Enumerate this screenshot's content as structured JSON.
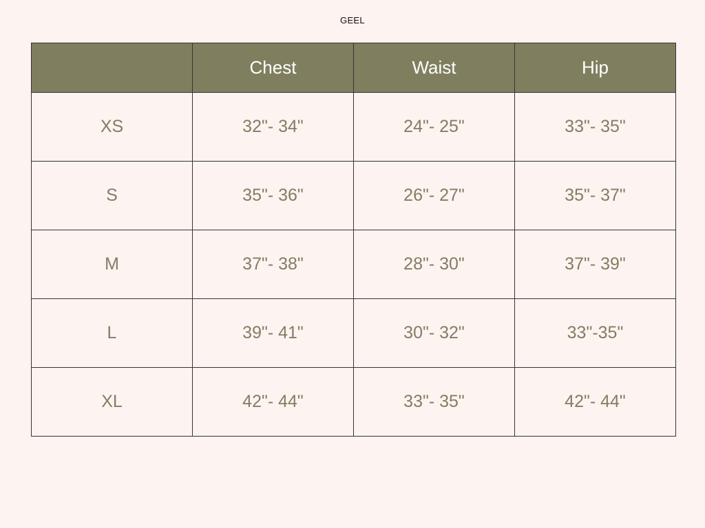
{
  "title": "GEEL",
  "colors": {
    "header_bg": "#7f7f5f",
    "text": "#7f7f62",
    "background": "#fdf3f1"
  },
  "columns": [
    "",
    "Chest",
    "Waist",
    "Hip"
  ],
  "rows": [
    {
      "size": "XS",
      "chest": "32\"- 34\"",
      "waist": "24\"- 25\"",
      "hip": "33\"- 35\""
    },
    {
      "size": "S",
      "chest": "35\"- 36\"",
      "waist": "26\"- 27\"",
      "hip": "35\"- 37\""
    },
    {
      "size": "M",
      "chest": "37\"- 38\"",
      "waist": "28\"- 30\"",
      "hip": "37\"- 39\""
    },
    {
      "size": "L",
      "chest": "39\"- 41\"",
      "waist": "30\"- 32\"",
      "hip": "33\"-35\""
    },
    {
      "size": "XL",
      "chest": "42\"- 44\"",
      "waist": "33\"- 35\"",
      "hip": "42\"- 44\""
    }
  ]
}
